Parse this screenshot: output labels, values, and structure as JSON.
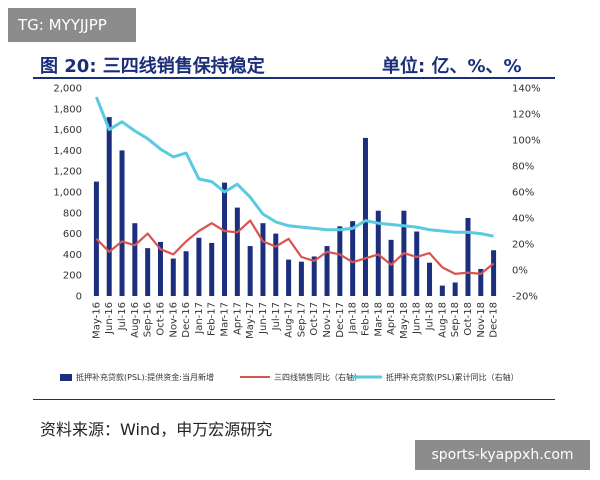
{
  "watermark_top": "TG: MYYJJPP",
  "watermark_bottom": "sports-kyappxh.com",
  "header": {
    "title": "图 20: 三四线销售保持稳定",
    "unit": "单位: 亿、%、%"
  },
  "source": "资料来源：Wind，申万宏源研究",
  "colors": {
    "bar": "#1c2f7d",
    "line_red": "#d9534f",
    "line_cyan": "#5bc9e0",
    "header": "#1a2e7a"
  },
  "chart_data": {
    "type": "bar",
    "categories": [
      "May-16",
      "Jun-16",
      "Jul-16",
      "Aug-16",
      "Sep-16",
      "Oct-16",
      "Nov-16",
      "Dec-16",
      "Jan-17",
      "Feb-17",
      "Mar-17",
      "Apr-17",
      "May-17",
      "Jun-17",
      "Jul-17",
      "Aug-17",
      "Sep-17",
      "Oct-17",
      "Nov-17",
      "Dec-17",
      "Jan-18",
      "Feb-18",
      "Mar-18",
      "Apr-18",
      "May-18",
      "Jun-18",
      "Jul-18",
      "Aug-18",
      "Sep-18",
      "Oct-18",
      "Nov-18",
      "Dec-18"
    ],
    "x_tick_labels": [
      "May-16",
      "Jun-16",
      "Jul-16",
      "Aug-16",
      "Sep-16",
      "Oct-16",
      "Nov-16",
      "Dec-16",
      "Jan-17",
      "Feb-17",
      "Mar-17",
      "Apr-17",
      "May-17",
      "Jun-17",
      "Jul-17",
      "Aug-17",
      "Sep-17",
      "Oct-17",
      "Nov-17",
      "Dec-17",
      "Jan-18",
      "Feb-18",
      "Mar-18",
      "Apr-18",
      "May-18",
      "Jun-18",
      "Jul-18",
      "Aug-18",
      "Sep-18",
      "Oct-18",
      "Nov-18",
      "Dec-18"
    ],
    "left_axis": {
      "min": 0,
      "max": 2000,
      "ticks": [
        0,
        200,
        400,
        600,
        800,
        1000,
        1200,
        1400,
        1600,
        1800,
        2000
      ],
      "tick_labels": [
        "0",
        "200",
        "400",
        "600",
        "800",
        "1,000",
        "1,200",
        "1,400",
        "1,600",
        "1,800",
        "2,000"
      ]
    },
    "right_axis": {
      "min": -20,
      "max": 140,
      "ticks": [
        -20,
        0,
        20,
        40,
        60,
        80,
        100,
        120,
        140
      ],
      "tick_labels": [
        "-20%",
        "0%",
        "20%",
        "40%",
        "60%",
        "80%",
        "100%",
        "120%",
        "140%"
      ]
    },
    "series": [
      {
        "name": "抵押补充贷款(PSL):提供资金:当月新增",
        "type": "bar",
        "axis": "left",
        "values": [
          1100,
          1720,
          1400,
          700,
          460,
          520,
          360,
          430,
          560,
          510,
          1090,
          850,
          480,
          700,
          600,
          350,
          330,
          380,
          480,
          670,
          720,
          1520,
          820,
          540,
          820,
          620,
          320,
          100,
          130,
          750,
          260,
          440
        ]
      },
      {
        "name": "三四线销售同比（右轴）",
        "type": "line",
        "axis": "right",
        "values": [
          24,
          14,
          22,
          19,
          28,
          16,
          12,
          22,
          30,
          36,
          30,
          29,
          38,
          22,
          18,
          24,
          10,
          7,
          14,
          12,
          6,
          9,
          12,
          4,
          13,
          10,
          13,
          2,
          -3,
          -2,
          -3,
          5
        ]
      },
      {
        "name": "抵押补充贷款(PSL)累计同比（右轴）",
        "type": "line",
        "axis": "right",
        "values": [
          133,
          108,
          114,
          107,
          101,
          93,
          87,
          90,
          70,
          68,
          60,
          66,
          56,
          43,
          37,
          34,
          33,
          32,
          31,
          31,
          32,
          38,
          36,
          35,
          34,
          33,
          31,
          30,
          29,
          29,
          28,
          26
        ]
      }
    ]
  }
}
